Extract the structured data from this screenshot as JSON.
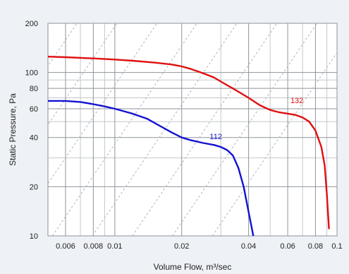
{
  "chart_data": {
    "type": "line",
    "title": "",
    "xlabel": "Volume Flow, m³/sec",
    "ylabel": "Static Pressure, Pa",
    "xscale": "log",
    "yscale": "log",
    "xlim": [
      0.005,
      0.1
    ],
    "ylim": [
      10,
      200
    ],
    "grid": true,
    "x_ticks": [
      {
        "value": 0.006,
        "label": "0.006"
      },
      {
        "value": 0.008,
        "label": "0.008"
      },
      {
        "value": 0.01,
        "label": "0.01"
      },
      {
        "value": 0.02,
        "label": "0.02"
      },
      {
        "value": 0.04,
        "label": "0.04"
      },
      {
        "value": 0.06,
        "label": "0.06"
      },
      {
        "value": 0.08,
        "label": "0.08"
      },
      {
        "value": 0.1,
        "label": "0.1"
      }
    ],
    "y_ticks": [
      {
        "value": 10,
        "label": "10"
      },
      {
        "value": 20,
        "label": "20"
      },
      {
        "value": 40,
        "label": "40"
      },
      {
        "value": 60,
        "label": "60"
      },
      {
        "value": 80,
        "label": "80"
      },
      {
        "value": 100,
        "label": "100"
      },
      {
        "value": 200,
        "label": "200"
      }
    ],
    "x_minor_grid": [
      0.007,
      0.009,
      0.03,
      0.05,
      0.07,
      0.09
    ],
    "y_minor_grid": [
      30,
      50,
      70,
      90
    ],
    "system_curve_lines": 9,
    "series": [
      {
        "name": "",
        "label": "132",
        "label_at": [
          0.066,
          63
        ],
        "color": "#e01010",
        "points": [
          [
            0.005,
            125
          ],
          [
            0.006,
            124
          ],
          [
            0.008,
            122
          ],
          [
            0.01,
            120
          ],
          [
            0.012,
            118
          ],
          [
            0.015,
            115
          ],
          [
            0.018,
            112
          ],
          [
            0.02,
            109
          ],
          [
            0.022,
            105
          ],
          [
            0.025,
            99
          ],
          [
            0.028,
            93
          ],
          [
            0.03,
            88
          ],
          [
            0.035,
            78
          ],
          [
            0.04,
            70
          ],
          [
            0.045,
            63
          ],
          [
            0.05,
            59
          ],
          [
            0.055,
            57
          ],
          [
            0.06,
            56
          ],
          [
            0.065,
            55
          ],
          [
            0.07,
            53
          ],
          [
            0.075,
            50
          ],
          [
            0.08,
            44
          ],
          [
            0.085,
            35
          ],
          [
            0.088,
            27
          ],
          [
            0.09,
            18
          ],
          [
            0.092,
            11
          ]
        ]
      },
      {
        "name": "",
        "label": "112",
        "label_at": [
          0.0285,
          38
        ],
        "color": "#1212d0",
        "points": [
          [
            0.005,
            67
          ],
          [
            0.006,
            67
          ],
          [
            0.007,
            66
          ],
          [
            0.008,
            64
          ],
          [
            0.009,
            62
          ],
          [
            0.01,
            60
          ],
          [
            0.012,
            56
          ],
          [
            0.014,
            52
          ],
          [
            0.016,
            47
          ],
          [
            0.018,
            43
          ],
          [
            0.02,
            40
          ],
          [
            0.022,
            38.5
          ],
          [
            0.025,
            37
          ],
          [
            0.028,
            36
          ],
          [
            0.03,
            35
          ],
          [
            0.032,
            33.5
          ],
          [
            0.034,
            31
          ],
          [
            0.036,
            26
          ],
          [
            0.038,
            20
          ],
          [
            0.04,
            14
          ],
          [
            0.042,
            10
          ]
        ]
      }
    ]
  }
}
